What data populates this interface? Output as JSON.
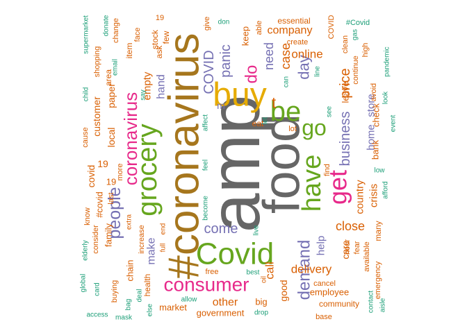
{
  "colors": {
    "gray": "#666666",
    "green": "#66a61e",
    "magenta": "#e7298a",
    "purple": "#7570b3",
    "orange": "#d95f02",
    "gold": "#e6ab02",
    "teal": "#1b9e77",
    "brown": "#a6761d"
  },
  "words": [
    {
      "text": "amp",
      "color": "gray"
    },
    {
      "text": "food",
      "color": "gray"
    },
    {
      "text": "#coronavirus",
      "color": "brown"
    },
    {
      "text": "buy",
      "color": "gold"
    },
    {
      "text": "Covid",
      "color": "green"
    },
    {
      "text": "grocery",
      "color": "green"
    },
    {
      "text": "have",
      "color": "green"
    },
    {
      "text": "be",
      "color": "green"
    },
    {
      "text": "get",
      "color": "magenta"
    },
    {
      "text": "go",
      "color": "green"
    },
    {
      "text": "consumer",
      "color": "magenta"
    },
    {
      "text": "coronavirus",
      "color": "magenta"
    },
    {
      "text": "people",
      "color": "purple"
    },
    {
      "text": "demand",
      "color": "purple"
    },
    {
      "text": "COVID",
      "color": "purple"
    },
    {
      "text": "do",
      "color": "magenta"
    },
    {
      "text": "day",
      "color": "purple"
    },
    {
      "text": "panic",
      "color": "purple"
    },
    {
      "text": "come",
      "color": "purple"
    },
    {
      "text": "business",
      "color": "purple"
    },
    {
      "text": "close",
      "color": "orange"
    },
    {
      "text": "price",
      "color": "orange"
    },
    {
      "text": "delivery",
      "color": "orange"
    },
    {
      "text": "online",
      "color": "orange"
    },
    {
      "text": "need",
      "color": "purple"
    },
    {
      "text": "case",
      "color": "orange"
    },
    {
      "text": "company",
      "color": "orange"
    },
    {
      "text": "home",
      "color": "purple"
    },
    {
      "text": "store",
      "color": "purple"
    },
    {
      "text": "make",
      "color": "purple"
    },
    {
      "text": "hand",
      "color": "purple"
    },
    {
      "text": "call",
      "color": "orange"
    },
    {
      "text": "other",
      "color": "orange"
    },
    {
      "text": "help",
      "color": "purple"
    },
    {
      "text": "local",
      "color": "orange"
    },
    {
      "text": "paper",
      "color": "orange"
    },
    {
      "text": "empty",
      "color": "orange"
    },
    {
      "text": "customer",
      "color": "orange"
    },
    {
      "text": "covid",
      "color": "orange"
    },
    {
      "text": "19",
      "color": "orange"
    },
    {
      "text": "#covid",
      "color": "orange"
    },
    {
      "text": "19",
      "color": "orange"
    },
    {
      "text": "country",
      "color": "orange"
    },
    {
      "text": "crisis",
      "color": "orange"
    },
    {
      "text": "keep",
      "color": "orange"
    },
    {
      "text": "good",
      "color": "orange"
    },
    {
      "text": "m",
      "color": "purple"
    },
    {
      "text": "t",
      "color": "orange"
    },
    {
      "text": "family",
      "color": "orange"
    },
    {
      "text": "chain",
      "color": "orange"
    },
    {
      "text": "market",
      "color": "orange"
    },
    {
      "text": "government",
      "color": "orange"
    },
    {
      "text": "employee",
      "color": "orange"
    },
    {
      "text": "care",
      "color": "orange"
    },
    {
      "text": "leave",
      "color": "orange"
    },
    {
      "text": "bank",
      "color": "orange"
    },
    {
      "text": "check",
      "color": "orange"
    },
    {
      "text": "essential",
      "color": "orange"
    },
    {
      "text": "big",
      "color": "orange"
    },
    {
      "text": "ask",
      "color": "orange"
    },
    {
      "text": "stock",
      "color": "orange"
    },
    {
      "text": "few",
      "color": "orange"
    },
    {
      "text": "item",
      "color": "orange"
    },
    {
      "text": "area",
      "color": "orange"
    },
    {
      "text": "shopping",
      "color": "orange"
    },
    {
      "text": "know",
      "color": "orange"
    },
    {
      "text": "last",
      "color": "orange"
    },
    {
      "text": "more",
      "color": "orange"
    },
    {
      "text": "health",
      "color": "orange"
    },
    {
      "text": "eat",
      "color": "orange"
    },
    {
      "text": "lot",
      "color": "orange"
    },
    {
      "text": "community",
      "color": "orange"
    },
    {
      "text": "cancel",
      "color": "orange"
    },
    {
      "text": "base",
      "color": "orange"
    },
    {
      "text": "hour",
      "color": "orange"
    },
    {
      "text": "fear",
      "color": "orange"
    },
    {
      "text": "many",
      "color": "orange"
    },
    {
      "text": "available",
      "color": "orange"
    },
    {
      "text": "emergency",
      "color": "orange"
    },
    {
      "text": "avoid",
      "color": "orange"
    },
    {
      "text": "continue",
      "color": "orange"
    },
    {
      "text": "clean",
      "color": "orange"
    },
    {
      "text": "high",
      "color": "orange"
    },
    {
      "text": "COVID",
      "color": "orange"
    },
    {
      "text": "create",
      "color": "orange"
    },
    {
      "text": "face",
      "color": "orange"
    },
    {
      "text": "19",
      "color": "orange"
    },
    {
      "text": "give",
      "color": "orange"
    },
    {
      "text": "able",
      "color": "orange"
    },
    {
      "text": "change",
      "color": "orange"
    },
    {
      "text": "cause",
      "color": "orange"
    },
    {
      "text": "consider",
      "color": "orange"
    },
    {
      "text": "buying",
      "color": "orange"
    },
    {
      "text": "increase",
      "color": "orange"
    },
    {
      "text": "full",
      "color": "orange"
    },
    {
      "text": "end",
      "color": "orange"
    },
    {
      "text": "free",
      "color": "orange"
    },
    {
      "text": "find",
      "color": "orange"
    },
    {
      "text": "extra",
      "color": "orange"
    },
    {
      "text": "oil",
      "color": "orange"
    },
    {
      "text": "#Covid",
      "color": "teal"
    },
    {
      "text": "supermarket",
      "color": "teal"
    },
    {
      "text": "donate",
      "color": "teal"
    },
    {
      "text": "email",
      "color": "teal"
    },
    {
      "text": "child",
      "color": "teal"
    },
    {
      "text": "say",
      "color": "teal"
    },
    {
      "text": "elderly",
      "color": "teal"
    },
    {
      "text": "global",
      "color": "teal"
    },
    {
      "text": "card",
      "color": "teal"
    },
    {
      "text": "bag",
      "color": "teal"
    },
    {
      "text": "access",
      "color": "teal"
    },
    {
      "text": "mask",
      "color": "teal"
    },
    {
      "text": "deal",
      "color": "teal"
    },
    {
      "text": "else",
      "color": "teal"
    },
    {
      "text": "allow",
      "color": "teal"
    },
    {
      "text": "best",
      "color": "teal"
    },
    {
      "text": "drop",
      "color": "teal"
    },
    {
      "text": "live",
      "color": "teal"
    },
    {
      "text": "feel",
      "color": "teal"
    },
    {
      "text": "become",
      "color": "teal"
    },
    {
      "text": "affect",
      "color": "teal"
    },
    {
      "text": "don",
      "color": "teal"
    },
    {
      "text": "can",
      "color": "teal"
    },
    {
      "text": "let",
      "color": "teal"
    },
    {
      "text": "line",
      "color": "teal"
    },
    {
      "text": "see",
      "color": "teal"
    },
    {
      "text": "event",
      "color": "teal"
    },
    {
      "text": "look",
      "color": "teal"
    },
    {
      "text": "low",
      "color": "teal"
    },
    {
      "text": "afford",
      "color": "teal"
    },
    {
      "text": "gas",
      "color": "teal"
    },
    {
      "text": "pandemic",
      "color": "teal"
    },
    {
      "text": "contact",
      "color": "teal"
    },
    {
      "text": "aisle",
      "color": "teal"
    }
  ]
}
